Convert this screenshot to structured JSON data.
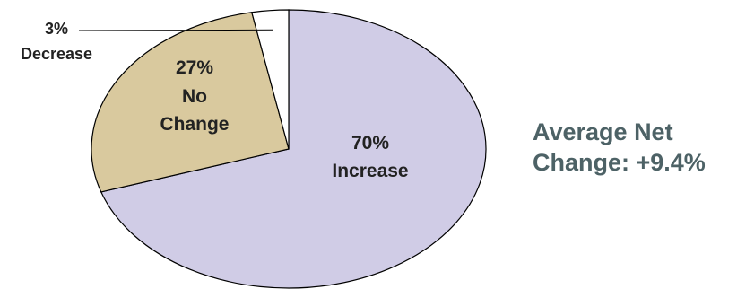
{
  "chart_data": {
    "type": "pie",
    "slices": [
      {
        "label_value": "70%",
        "label_text": "Increase",
        "value": 70,
        "color": "#d0cce6"
      },
      {
        "label_value": "27%",
        "label_text_lines": [
          "No",
          "Change"
        ],
        "value": 27,
        "color": "#d9c99e"
      },
      {
        "label_value": "3%",
        "label_text": "Decrease",
        "value": 3,
        "color": "#ffffff"
      }
    ],
    "title": "",
    "legend": "none",
    "outline_color": "#000000"
  },
  "annotation": {
    "line1": "Average Net",
    "line2": "Change: +9.4%"
  }
}
